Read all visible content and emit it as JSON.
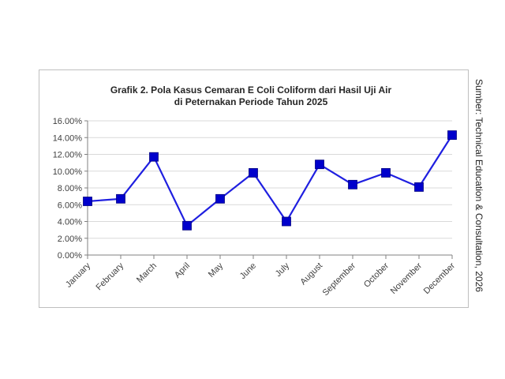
{
  "chart_data": {
    "type": "line",
    "title_lines": [
      "Grafik 2. Pola Kasus Cemaran E Coli Coliform dari Hasil Uji Air",
      "di Peternakan Periode Tahun 2025"
    ],
    "categories": [
      "January",
      "February",
      "March",
      "April",
      "May",
      "June",
      "July",
      "August",
      "September",
      "October",
      "November",
      "December"
    ],
    "values": [
      6.4,
      6.7,
      11.7,
      3.5,
      6.7,
      9.8,
      4.0,
      10.8,
      8.4,
      9.8,
      8.1,
      14.3
    ],
    "y_unit": "%",
    "ylim": [
      0,
      16
    ],
    "y_ticks": [
      "0.00%",
      "2.00%",
      "4.00%",
      "6.00%",
      "8.00%",
      "10.00%",
      "12.00%",
      "14.00%",
      "16.00%"
    ],
    "grid": true,
    "legend": "none",
    "line_color": "#1f1fe0",
    "marker_color": "#0000cc",
    "marker": "square"
  },
  "source_note": "Sumber: Technical Education & Consultation, 2026"
}
